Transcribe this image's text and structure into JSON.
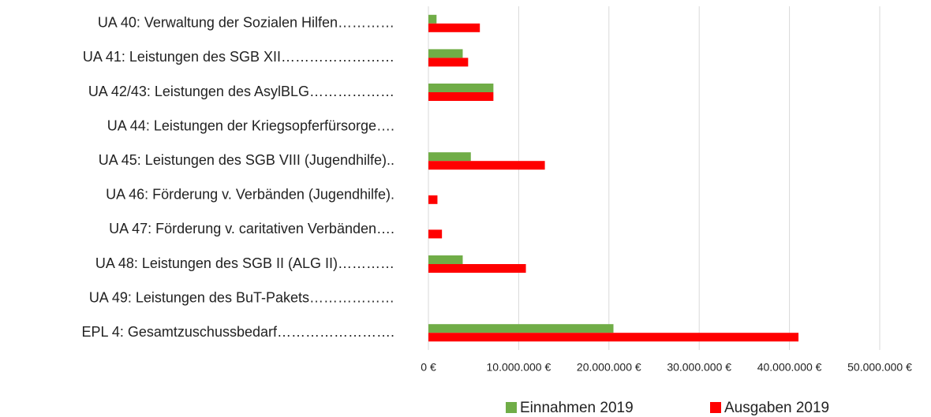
{
  "chart_data": {
    "type": "hbar",
    "categories": [
      "UA 40: Verwaltung der Sozialen Hilfen…………",
      "UA 41: Leistungen des SGB XII……………………",
      "UA 42/43: Leistungen des AsylBLG………………",
      "UA 44: Leistungen der Kriegsopferfürsorge….",
      "UA 45: Leistungen des SGB VIII (Jugendhilfe)..",
      "UA 46: Förderung v. Verbänden (Jugendhilfe).",
      "UA 47: Förderung v. caritativen Verbänden….",
      "UA 48: Leistungen des SGB II (ALG II)…………",
      "UA 49: Leistungen des BuT-Pakets………………",
      "EPL 4: Gesamtzuschussbedarf……………………."
    ],
    "series": [
      {
        "name": "Einnahmen 2019",
        "color": "#70ad47",
        "values": [
          900000,
          3800000,
          7200000,
          0,
          4700000,
          0,
          0,
          3800000,
          0,
          20500000
        ]
      },
      {
        "name": "Ausgaben 2019",
        "color": "#ff0000",
        "values": [
          5700000,
          4400000,
          7200000,
          0,
          12900000,
          1000000,
          1500000,
          10800000,
          0,
          41000000
        ]
      }
    ],
    "xlim": [
      0,
      50000000
    ],
    "xticks": [
      {
        "value": 0,
        "label": "0 €"
      },
      {
        "value": 10000000,
        "label": "10.000.000 €"
      },
      {
        "value": 20000000,
        "label": "20.000.000 €"
      },
      {
        "value": 30000000,
        "label": "30.000.000 €"
      },
      {
        "value": 40000000,
        "label": "40.000.000 €"
      },
      {
        "value": 50000000,
        "label": "50.000.000 €"
      }
    ],
    "grid": true,
    "legend": "bottom"
  }
}
